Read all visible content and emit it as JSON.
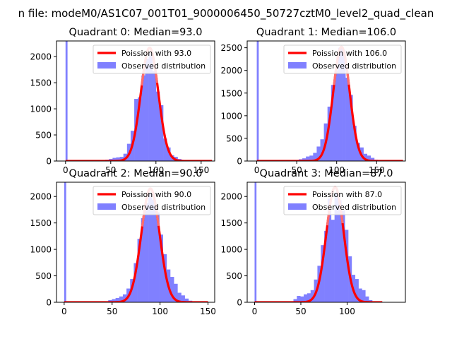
{
  "suptitle": "n file: modeM0/AS1C07_001T01_9000006450_50727cztM0_level2_quad_clean",
  "colors": {
    "hist": "#8080ff",
    "fit": "#ff0000",
    "fit_hi": "#ff8080",
    "zero_bar": "#8080ff"
  },
  "chart_data": [
    {
      "type": "bar",
      "title": "Quadrant 0: Median=93.0",
      "xlim": [
        -10,
        165
      ],
      "ylim": [
        0,
        2300
      ],
      "xticks": [
        0,
        50,
        100,
        150
      ],
      "xtick_labels": [
        "0",
        "50",
        "100",
        "150"
      ],
      "yticks": [
        0,
        500,
        1000,
        1500,
        2000
      ],
      "ytick_labels": [
        "0",
        "500",
        "1000",
        "1500",
        "2000"
      ],
      "legend": [
        "Poission with 93.0",
        "Observed distribution"
      ],
      "legend_loc": "upper right",
      "zero_count": 2300,
      "bin_width": 4,
      "bin_starts": [
        44,
        48,
        52,
        56,
        60,
        64,
        68,
        72,
        76,
        80,
        84,
        88,
        92,
        96,
        100,
        104,
        108,
        112,
        116,
        120,
        124,
        128,
        132
      ],
      "counts": [
        25,
        40,
        60,
        70,
        80,
        140,
        330,
        580,
        1190,
        1220,
        1640,
        1960,
        2070,
        1720,
        1330,
        1070,
        430,
        260,
        110,
        80,
        40,
        20,
        10
      ],
      "fit_mean": 93.0,
      "fit_peak": 2170,
      "fit_range": [
        0,
        162
      ]
    },
    {
      "type": "bar",
      "title": "Quadrant 1: Median=106.0",
      "xlim": [
        -12,
        186
      ],
      "ylim": [
        0,
        2650
      ],
      "xticks": [
        0,
        50,
        100,
        150
      ],
      "xtick_labels": [
        "0",
        "50",
        "100",
        "150"
      ],
      "yticks": [
        0,
        500,
        1000,
        1500,
        2000,
        2500
      ],
      "ytick_labels": [
        "0",
        "500",
        "1000",
        "1500",
        "2000",
        "2500"
      ],
      "legend": [
        "Poission with 106.0",
        "Observed distribution"
      ],
      "legend_loc": "upper right",
      "zero_count": 2650,
      "bin_width": 4.5,
      "bin_starts": [
        48,
        52.5,
        57,
        61.5,
        66,
        70.5,
        75,
        79.5,
        84,
        88.5,
        93,
        97.5,
        102,
        106.5,
        111,
        115.5,
        120,
        124.5,
        129,
        133.5,
        138,
        142.5,
        147
      ],
      "counts": [
        20,
        40,
        60,
        100,
        120,
        180,
        320,
        480,
        830,
        1200,
        1680,
        2000,
        2500,
        2440,
        1840,
        1460,
        780,
        400,
        300,
        160,
        120,
        70,
        30
      ],
      "fit_mean": 106.0,
      "fit_peak": 2520,
      "fit_range": [
        0,
        183
      ]
    },
    {
      "type": "bar",
      "title": "Quadrant 2: Median=90.0",
      "xlim": [
        -8,
        157
      ],
      "ylim": [
        0,
        2270
      ],
      "xticks": [
        0,
        50,
        100,
        150
      ],
      "xtick_labels": [
        "0",
        "50",
        "100",
        "150"
      ],
      "yticks": [
        0,
        500,
        1000,
        1500,
        2000
      ],
      "ytick_labels": [
        "0",
        "500",
        "1000",
        "1500",
        "2000"
      ],
      "legend": [
        "Poission with 90.0",
        "Observed distribution"
      ],
      "legend_loc": "upper right",
      "zero_count": 2270,
      "bin_width": 3.8,
      "bin_starts": [
        46,
        49.8,
        53.6,
        57.4,
        61.2,
        65,
        68.8,
        72.6,
        76.4,
        80.2,
        84,
        87.8,
        91.6,
        95.4,
        99.2,
        103,
        106.8,
        110.6,
        114.4,
        118.2,
        122,
        125.8,
        129.6
      ],
      "counts": [
        40,
        60,
        80,
        110,
        150,
        260,
        440,
        740,
        1200,
        1590,
        1880,
        2060,
        1940,
        1700,
        1280,
        910,
        620,
        480,
        350,
        180,
        130,
        70,
        30
      ],
      "fit_mean": 90.0,
      "fit_peak": 2150,
      "fit_range": [
        0,
        150
      ]
    },
    {
      "type": "bar",
      "title": "Quadrant 3: Median=87.0",
      "xlim": [
        -8,
        163
      ],
      "ylim": [
        0,
        2270
      ],
      "xticks": [
        0,
        50,
        100
      ],
      "xtick_labels": [
        "0",
        "50",
        "100"
      ],
      "yticks": [
        0,
        500,
        1000,
        1500,
        2000
      ],
      "ytick_labels": [
        "0",
        "500",
        "1000",
        "1500",
        "2000"
      ],
      "legend": [
        "Poission with 87.0",
        "Observed distribution"
      ],
      "legend_loc": "upper right",
      "zero_count": 2270,
      "bin_width": 3.7,
      "bin_starts": [
        42,
        45.7,
        49.4,
        53.1,
        56.8,
        60.5,
        64.2,
        67.9,
        71.6,
        75.3,
        79,
        82.7,
        86.4,
        90.1,
        93.8,
        97.5,
        101.2,
        104.9,
        108.6,
        112.3,
        116,
        119.7,
        123.4,
        127.1
      ],
      "counts": [
        60,
        120,
        110,
        150,
        170,
        230,
        430,
        690,
        1080,
        1350,
        1960,
        1560,
        2070,
        1930,
        1740,
        1370,
        870,
        520,
        440,
        260,
        230,
        110,
        40,
        20
      ],
      "fit_mean": 87.0,
      "fit_peak": 2180,
      "fit_range": [
        0,
        138
      ]
    }
  ]
}
